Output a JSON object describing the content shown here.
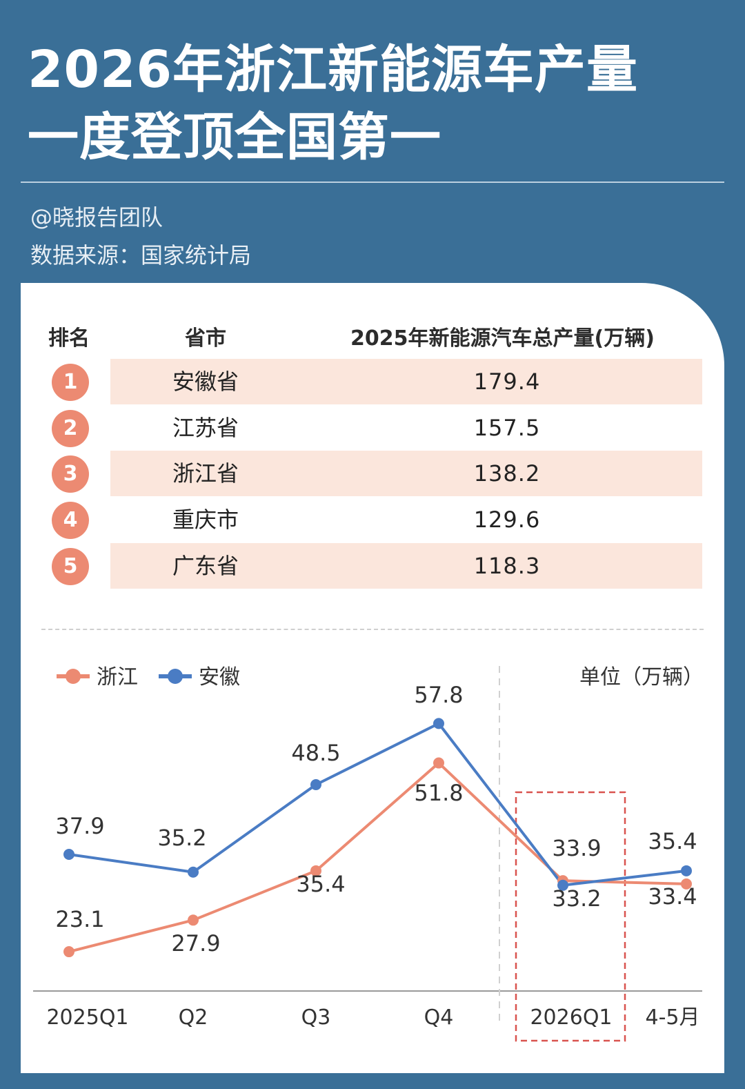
{
  "title_line1": "2026年浙江新能源车产量",
  "title_line2": "一度登顶全国第一",
  "author": "@晓报告团队",
  "source": "数据来源：国家统计局",
  "table": {
    "headers": [
      "排名",
      "省市",
      "2025年新能源汽车总产量(万辆)"
    ],
    "rows": [
      {
        "rank": "1",
        "province": "安徽省",
        "value": "179.4"
      },
      {
        "rank": "2",
        "province": "江苏省",
        "value": "157.5"
      },
      {
        "rank": "3",
        "province": "浙江省",
        "value": "138.2"
      },
      {
        "rank": "4",
        "province": "重庆市",
        "value": "129.6"
      },
      {
        "rank": "5",
        "province": "广东省",
        "value": "118.3"
      }
    ]
  },
  "colors": {
    "zhejiang": "#ec8a72",
    "anhui": "#4a7cc4",
    "highlight_box": "#d9534f"
  },
  "chart_data": {
    "type": "line",
    "categories": [
      "2025Q1",
      "Q2",
      "Q3",
      "Q4",
      "2026Q1",
      "4-5月"
    ],
    "unit": "单位（万辆）",
    "series": [
      {
        "name": "浙江",
        "values": [
          23.1,
          27.9,
          35.4,
          51.8,
          33.9,
          33.4
        ]
      },
      {
        "name": "安徽",
        "values": [
          37.9,
          35.2,
          48.5,
          57.8,
          33.2,
          35.4
        ]
      }
    ],
    "highlight": "2026Q1",
    "legend": "top-left",
    "grid": false
  }
}
